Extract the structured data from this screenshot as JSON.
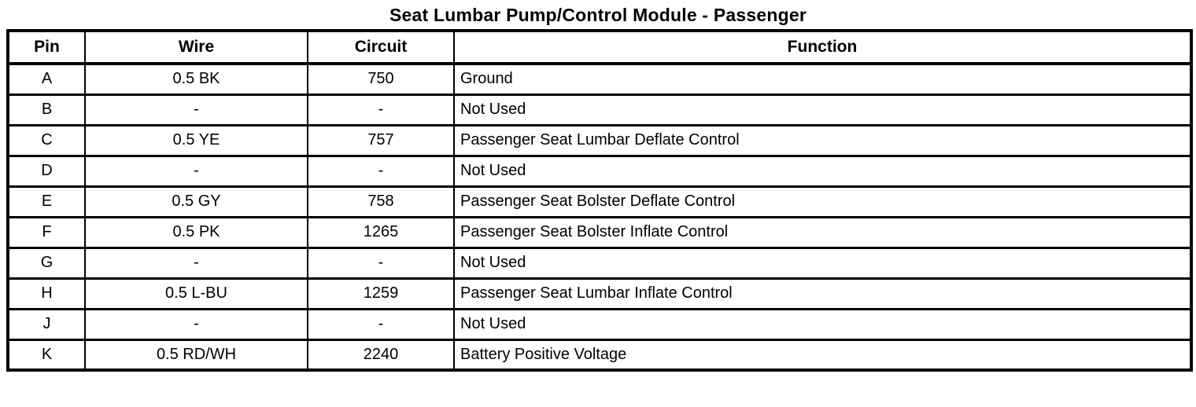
{
  "page": {
    "background_color": "#ffffff",
    "text_color": "#000000",
    "border_color": "#000000"
  },
  "title": "Seat Lumbar Pump/Control Module - Passenger",
  "table": {
    "columns": [
      "Pin",
      "Wire",
      "Circuit",
      "Function"
    ],
    "rows": [
      {
        "pin": "A",
        "wire": "0.5 BK",
        "circuit": "750",
        "function": "Ground"
      },
      {
        "pin": "B",
        "wire": "-",
        "circuit": "-",
        "function": "Not Used"
      },
      {
        "pin": "C",
        "wire": "0.5 YE",
        "circuit": "757",
        "function": "Passenger Seat Lumbar Deflate Control"
      },
      {
        "pin": "D",
        "wire": "-",
        "circuit": "-",
        "function": "Not Used"
      },
      {
        "pin": "E",
        "wire": "0.5 GY",
        "circuit": "758",
        "function": "Passenger Seat Bolster Deflate Control"
      },
      {
        "pin": "F",
        "wire": "0.5 PK",
        "circuit": "1265",
        "function": "Passenger Seat Bolster Inflate Control"
      },
      {
        "pin": "G",
        "wire": "-",
        "circuit": "-",
        "function": "Not Used"
      },
      {
        "pin": "H",
        "wire": "0.5 L-BU",
        "circuit": "1259",
        "function": "Passenger Seat Lumbar Inflate Control"
      },
      {
        "pin": "J",
        "wire": "-",
        "circuit": "-",
        "function": "Not Used"
      },
      {
        "pin": "K",
        "wire": "0.5 RD/WH",
        "circuit": "2240",
        "function": "Battery Positive Voltage"
      }
    ]
  }
}
